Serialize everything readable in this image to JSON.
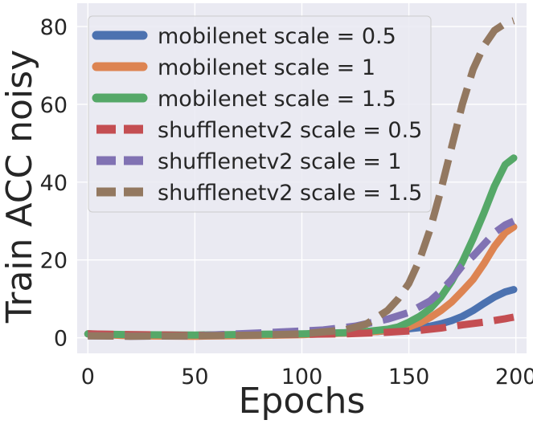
{
  "chart_data": {
    "type": "line",
    "title": "",
    "xlabel": "Epochs",
    "ylabel": "Train ACC noisy",
    "xlim": [
      -5,
      205
    ],
    "ylim": [
      -4,
      86
    ],
    "xticks": [
      0,
      50,
      100,
      150,
      200
    ],
    "yticks": [
      0,
      20,
      40,
      60,
      80
    ],
    "grid": true,
    "legend_position": "top-left",
    "background": "#eaeaf2",
    "series": [
      {
        "name": "mobilenet scale = 0.5",
        "color": "#4c72b0",
        "style": "solid",
        "points": [
          [
            0,
            1
          ],
          [
            20,
            0.6
          ],
          [
            50,
            0.5
          ],
          [
            80,
            0.7
          ],
          [
            100,
            0.9
          ],
          [
            120,
            1.2
          ],
          [
            135,
            1.6
          ],
          [
            145,
            2.0
          ],
          [
            155,
            2.6
          ],
          [
            160,
            3.0
          ],
          [
            165,
            3.6
          ],
          [
            170,
            4.4
          ],
          [
            175,
            5.5
          ],
          [
            180,
            7.0
          ],
          [
            185,
            8.8
          ],
          [
            190,
            10.5
          ],
          [
            195,
            11.8
          ],
          [
            199,
            12.4
          ]
        ]
      },
      {
        "name": "mobilenet scale = 1",
        "color": "#dd8452",
        "style": "solid",
        "points": [
          [
            0,
            1
          ],
          [
            20,
            0.5
          ],
          [
            50,
            0.4
          ],
          [
            80,
            0.6
          ],
          [
            100,
            0.8
          ],
          [
            120,
            1.2
          ],
          [
            135,
            1.6
          ],
          [
            145,
            2.2
          ],
          [
            150,
            2.8
          ],
          [
            155,
            3.8
          ],
          [
            160,
            5.2
          ],
          [
            165,
            7.0
          ],
          [
            170,
            9.2
          ],
          [
            175,
            12.0
          ],
          [
            180,
            15.0
          ],
          [
            185,
            19.0
          ],
          [
            190,
            23.5
          ],
          [
            195,
            27.0
          ],
          [
            199,
            28.5
          ]
        ]
      },
      {
        "name": "mobilenet scale = 1.5",
        "color": "#55a868",
        "style": "solid",
        "points": [
          [
            0,
            1
          ],
          [
            20,
            0.8
          ],
          [
            50,
            0.7
          ],
          [
            80,
            0.9
          ],
          [
            100,
            1.0
          ],
          [
            120,
            1.3
          ],
          [
            130,
            1.6
          ],
          [
            140,
            2.2
          ],
          [
            145,
            2.8
          ],
          [
            150,
            4.0
          ],
          [
            155,
            5.5
          ],
          [
            160,
            7.5
          ],
          [
            165,
            10.5
          ],
          [
            170,
            14.5
          ],
          [
            175,
            19.5
          ],
          [
            180,
            25.5
          ],
          [
            185,
            32.0
          ],
          [
            190,
            39.0
          ],
          [
            195,
            44.5
          ],
          [
            199,
            46.2
          ]
        ]
      },
      {
        "name": "shufflenetv2 scale = 0.5",
        "color": "#c44e52",
        "style": "dashed",
        "points": [
          [
            0,
            1
          ],
          [
            20,
            0.8
          ],
          [
            50,
            0.6
          ],
          [
            80,
            0.8
          ],
          [
            100,
            0.9
          ],
          [
            120,
            1.0
          ],
          [
            140,
            1.4
          ],
          [
            155,
            1.9
          ],
          [
            165,
            2.5
          ],
          [
            175,
            3.3
          ],
          [
            185,
            4.0
          ],
          [
            195,
            4.9
          ],
          [
            199,
            5.3
          ]
        ]
      },
      {
        "name": "shufflenetv2 scale = 1",
        "color": "#8172b3",
        "style": "dashed",
        "points": [
          [
            0,
            0.5
          ],
          [
            20,
            0.4
          ],
          [
            50,
            0.5
          ],
          [
            70,
            1.0
          ],
          [
            90,
            1.5
          ],
          [
            110,
            2.0
          ],
          [
            125,
            3.0
          ],
          [
            140,
            4.8
          ],
          [
            150,
            6.5
          ],
          [
            160,
            9.5
          ],
          [
            165,
            12.0
          ],
          [
            170,
            15.0
          ],
          [
            175,
            18.5
          ],
          [
            180,
            21.0
          ],
          [
            185,
            24.0
          ],
          [
            190,
            27.0
          ],
          [
            195,
            29.0
          ],
          [
            199,
            30.0
          ]
        ]
      },
      {
        "name": "shufflenetv2 scale = 1.5",
        "color": "#937860",
        "style": "dashed",
        "points": [
          [
            0,
            0.5
          ],
          [
            20,
            0.4
          ],
          [
            50,
            0.5
          ],
          [
            80,
            0.7
          ],
          [
            100,
            1.0
          ],
          [
            120,
            2.0
          ],
          [
            130,
            3.5
          ],
          [
            140,
            7.0
          ],
          [
            145,
            10.0
          ],
          [
            150,
            14.0
          ],
          [
            155,
            20.0
          ],
          [
            160,
            28.0
          ],
          [
            165,
            38.0
          ],
          [
            170,
            49.0
          ],
          [
            175,
            60.0
          ],
          [
            180,
            69.0
          ],
          [
            185,
            75.0
          ],
          [
            190,
            79.0
          ],
          [
            195,
            80.8
          ],
          [
            199,
            81.5
          ]
        ]
      }
    ]
  }
}
